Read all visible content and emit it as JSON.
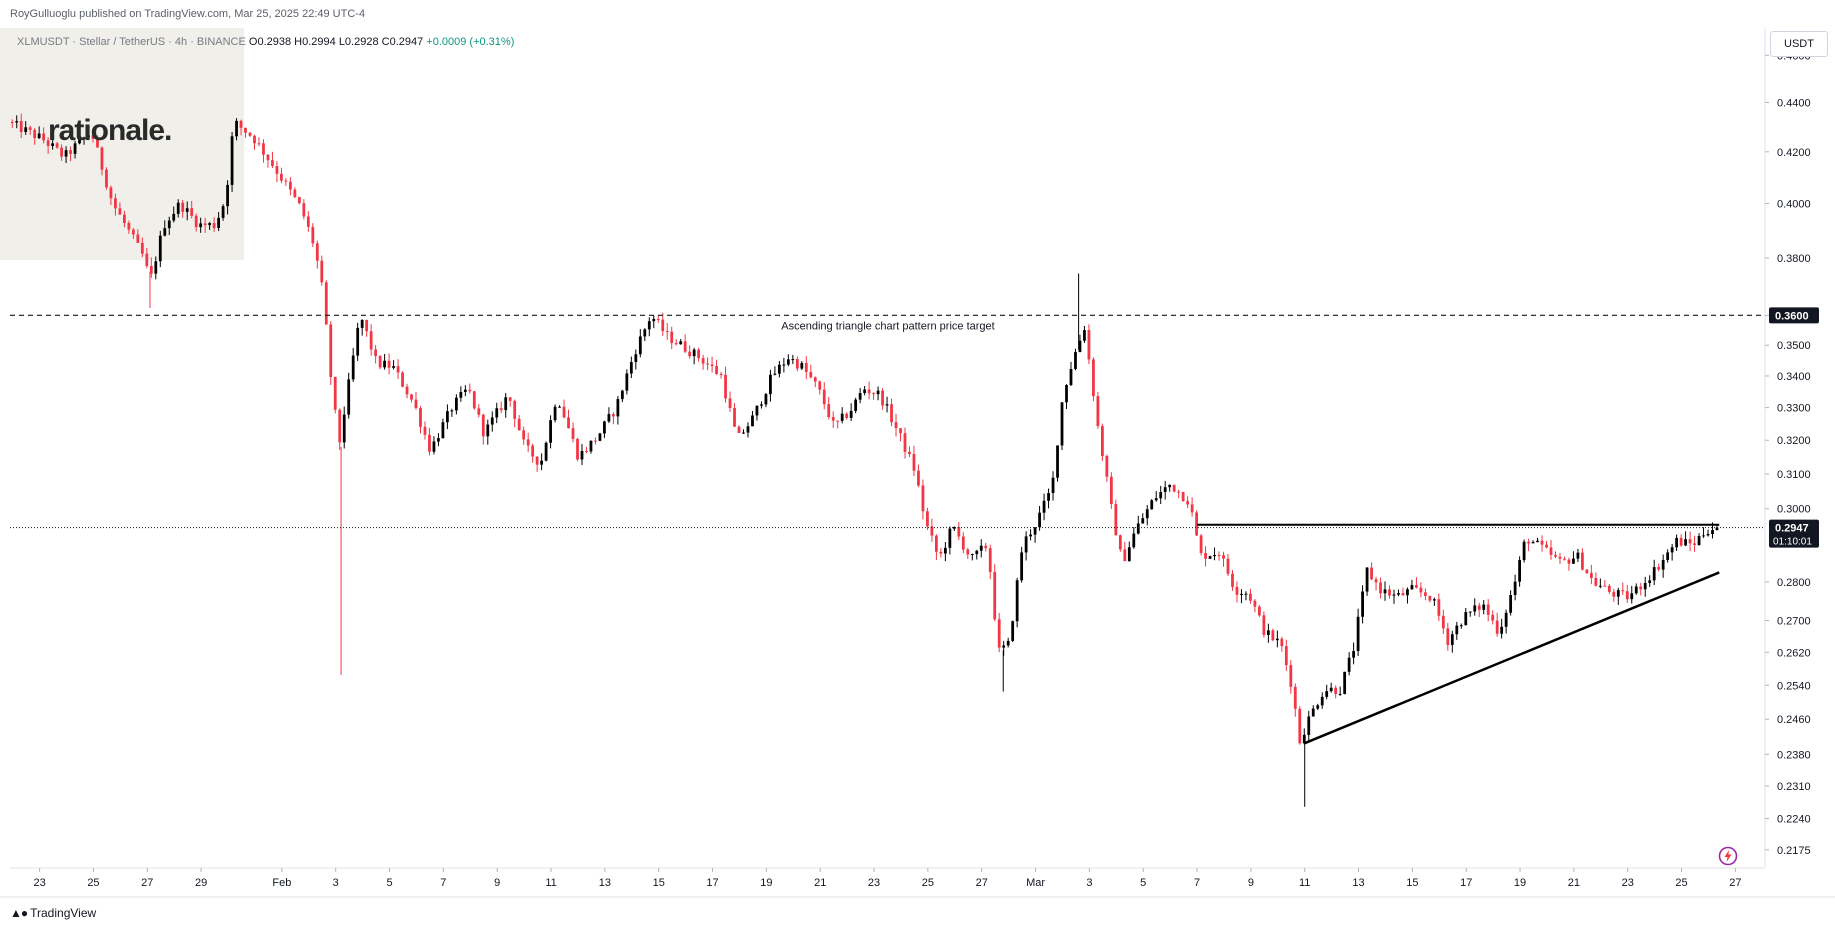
{
  "header": {
    "publisher": "RoyGulluoglu published on TradingView.com, Mar 25, 2025 22:49 UTC-4"
  },
  "legend": {
    "symbol": "XLMUSDT · Stellar / TetherUS · 4h · BINANCE",
    "open": "O0.2938",
    "high": "H0.2994",
    "low": "L0.2928",
    "close": "C0.2947",
    "change": "+0.0009 (+0.31%)"
  },
  "watermark": {
    "logo_text": "rationale."
  },
  "price_scale": {
    "currency_button": "USDT"
  },
  "footer": {
    "brand": "TradingView",
    "brand_icon": "tradingview-logo-icon"
  },
  "icons": {
    "flash": "lightning-icon"
  },
  "colors": {
    "up": "#000000",
    "down": "#f23645",
    "grid": "#f0f3fa",
    "last_price_tag": "#131722",
    "target_tag": "#131722"
  },
  "chart_data": {
    "type": "candlestick",
    "symbol": "XLMUSDT",
    "timeframe": "4h",
    "ylim": [
      0.2138,
      0.472
    ],
    "y_scale": "log",
    "y_ticks": [
      "0.4600",
      "0.4400",
      "0.4200",
      "0.4000",
      "0.3800",
      "0.3600",
      "0.3500",
      "0.3400",
      "0.3300",
      "0.3200",
      "0.3100",
      "0.3000",
      "0.2947",
      "0.2800",
      "0.2700",
      "0.2620",
      "0.2540",
      "0.2460",
      "0.2380",
      "0.2310",
      "0.2240",
      "0.2175"
    ],
    "x_ticks": [
      {
        "label": "23",
        "day": 0
      },
      {
        "label": "25",
        "day": 2
      },
      {
        "label": "27",
        "day": 4
      },
      {
        "label": "29",
        "day": 6
      },
      {
        "label": "Feb",
        "day": 9
      },
      {
        "label": "3",
        "day": 11
      },
      {
        "label": "5",
        "day": 13
      },
      {
        "label": "7",
        "day": 15
      },
      {
        "label": "9",
        "day": 17
      },
      {
        "label": "11",
        "day": 19
      },
      {
        "label": "13",
        "day": 21
      },
      {
        "label": "15",
        "day": 23
      },
      {
        "label": "17",
        "day": 25
      },
      {
        "label": "19",
        "day": 27
      },
      {
        "label": "21",
        "day": 29
      },
      {
        "label": "23",
        "day": 31
      },
      {
        "label": "25",
        "day": 33
      },
      {
        "label": "27",
        "day": 35
      },
      {
        "label": "Mar",
        "day": 37
      },
      {
        "label": "3",
        "day": 39
      },
      {
        "label": "5",
        "day": 41
      },
      {
        "label": "7",
        "day": 43
      },
      {
        "label": "9",
        "day": 45
      },
      {
        "label": "11",
        "day": 47
      },
      {
        "label": "13",
        "day": 49
      },
      {
        "label": "15",
        "day": 51
      },
      {
        "label": "17",
        "day": 53
      },
      {
        "label": "19",
        "day": 55
      },
      {
        "label": "21",
        "day": 57
      },
      {
        "label": "23",
        "day": 59
      },
      {
        "label": "25",
        "day": 61
      },
      {
        "label": "27",
        "day": 63
      }
    ],
    "x_range_days": [
      -1.1,
      64.1
    ],
    "price_anchors": [
      {
        "day": -1.1,
        "price": 0.432
      },
      {
        "day": 0.2,
        "price": 0.425
      },
      {
        "day": 1.0,
        "price": 0.418
      },
      {
        "day": 2.0,
        "price": 0.428
      },
      {
        "day": 2.8,
        "price": 0.4
      },
      {
        "day": 3.9,
        "price": 0.381
      },
      {
        "day": 4.2,
        "price": 0.372
      },
      {
        "day": 4.7,
        "price": 0.392
      },
      {
        "day": 5.3,
        "price": 0.4
      },
      {
        "day": 6.0,
        "price": 0.392
      },
      {
        "day": 6.6,
        "price": 0.392
      },
      {
        "day": 7.0,
        "price": 0.402
      },
      {
        "day": 7.3,
        "price": 0.432
      },
      {
        "day": 8.0,
        "price": 0.426
      },
      {
        "day": 8.8,
        "price": 0.414
      },
      {
        "day": 9.8,
        "price": 0.398
      },
      {
        "day": 10.3,
        "price": 0.384
      },
      {
        "day": 10.6,
        "price": 0.368
      },
      {
        "day": 10.9,
        "price": 0.34
      },
      {
        "day": 11.2,
        "price": 0.318
      },
      {
        "day": 11.6,
        "price": 0.339
      },
      {
        "day": 12.0,
        "price": 0.36
      },
      {
        "day": 12.6,
        "price": 0.344
      },
      {
        "day": 13.2,
        "price": 0.343
      },
      {
        "day": 14.0,
        "price": 0.331
      },
      {
        "day": 14.6,
        "price": 0.317
      },
      {
        "day": 15.4,
        "price": 0.33
      },
      {
        "day": 16.0,
        "price": 0.336
      },
      {
        "day": 16.6,
        "price": 0.322
      },
      {
        "day": 17.5,
        "price": 0.334
      },
      {
        "day": 18.1,
        "price": 0.318
      },
      {
        "day": 18.7,
        "price": 0.313
      },
      {
        "day": 19.3,
        "price": 0.334
      },
      {
        "day": 20.1,
        "price": 0.315
      },
      {
        "day": 20.8,
        "price": 0.321
      },
      {
        "day": 21.5,
        "price": 0.33
      },
      {
        "day": 22.2,
        "price": 0.348
      },
      {
        "day": 22.8,
        "price": 0.36
      },
      {
        "day": 23.4,
        "price": 0.353
      },
      {
        "day": 24.6,
        "price": 0.346
      },
      {
        "day": 25.4,
        "price": 0.34
      },
      {
        "day": 26.0,
        "price": 0.32
      },
      {
        "day": 26.6,
        "price": 0.327
      },
      {
        "day": 27.3,
        "price": 0.34
      },
      {
        "day": 27.9,
        "price": 0.346
      },
      {
        "day": 28.4,
        "price": 0.343
      },
      {
        "day": 29.0,
        "price": 0.336
      },
      {
        "day": 29.6,
        "price": 0.324
      },
      {
        "day": 30.2,
        "price": 0.329
      },
      {
        "day": 30.7,
        "price": 0.336
      },
      {
        "day": 31.3,
        "price": 0.334
      },
      {
        "day": 32.0,
        "price": 0.322
      },
      {
        "day": 32.6,
        "price": 0.311
      },
      {
        "day": 33.0,
        "price": 0.296
      },
      {
        "day": 33.5,
        "price": 0.286
      },
      {
        "day": 34.0,
        "price": 0.295
      },
      {
        "day": 34.7,
        "price": 0.286
      },
      {
        "day": 35.3,
        "price": 0.29
      },
      {
        "day": 35.7,
        "price": 0.262
      },
      {
        "day": 36.1,
        "price": 0.264
      },
      {
        "day": 36.6,
        "price": 0.29
      },
      {
        "day": 37.1,
        "price": 0.296
      },
      {
        "day": 37.7,
        "price": 0.306
      },
      {
        "day": 38.1,
        "price": 0.334
      },
      {
        "day": 38.5,
        "price": 0.346
      },
      {
        "day": 38.9,
        "price": 0.356
      },
      {
        "day": 39.4,
        "price": 0.324
      },
      {
        "day": 39.9,
        "price": 0.3
      },
      {
        "day": 40.3,
        "price": 0.285
      },
      {
        "day": 40.8,
        "price": 0.294
      },
      {
        "day": 41.5,
        "price": 0.303
      },
      {
        "day": 42.1,
        "price": 0.307
      },
      {
        "day": 42.8,
        "price": 0.302
      },
      {
        "day": 43.2,
        "price": 0.287
      },
      {
        "day": 43.9,
        "price": 0.288
      },
      {
        "day": 44.5,
        "price": 0.278
      },
      {
        "day": 45.0,
        "price": 0.277
      },
      {
        "day": 45.6,
        "price": 0.267
      },
      {
        "day": 46.2,
        "price": 0.264
      },
      {
        "day": 46.6,
        "price": 0.254
      },
      {
        "day": 46.9,
        "price": 0.241
      },
      {
        "day": 47.3,
        "price": 0.247
      },
      {
        "day": 47.8,
        "price": 0.253
      },
      {
        "day": 48.4,
        "price": 0.253
      },
      {
        "day": 48.9,
        "price": 0.263
      },
      {
        "day": 49.4,
        "price": 0.283
      },
      {
        "day": 49.9,
        "price": 0.278
      },
      {
        "day": 50.5,
        "price": 0.276
      },
      {
        "day": 51.1,
        "price": 0.278
      },
      {
        "day": 51.8,
        "price": 0.276
      },
      {
        "day": 52.4,
        "price": 0.265
      },
      {
        "day": 53.0,
        "price": 0.271
      },
      {
        "day": 53.7,
        "price": 0.274
      },
      {
        "day": 54.3,
        "price": 0.267
      },
      {
        "day": 54.9,
        "price": 0.28
      },
      {
        "day": 55.3,
        "price": 0.292
      },
      {
        "day": 55.9,
        "price": 0.289
      },
      {
        "day": 56.6,
        "price": 0.285
      },
      {
        "day": 57.2,
        "price": 0.287
      },
      {
        "day": 57.8,
        "price": 0.28
      },
      {
        "day": 58.5,
        "price": 0.277
      },
      {
        "day": 59.1,
        "price": 0.276
      },
      {
        "day": 59.7,
        "price": 0.28
      },
      {
        "day": 60.3,
        "price": 0.285
      },
      {
        "day": 60.9,
        "price": 0.291
      },
      {
        "day": 61.5,
        "price": 0.29
      },
      {
        "day": 62.0,
        "price": 0.294
      },
      {
        "day": 62.3,
        "price": 0.2947
      }
    ],
    "wicks": [
      {
        "day": 11.2,
        "low": 0.2565
      },
      {
        "day": 38.6,
        "high": 0.3745
      },
      {
        "day": 47.0,
        "low": 0.2265
      },
      {
        "day": 35.8,
        "low": 0.2525
      },
      {
        "day": 4.1,
        "low": 0.3625
      }
    ],
    "target_line": {
      "price": 0.36,
      "label": "Ascending triangle chart pattern price target"
    },
    "resistance_line": {
      "price": 0.2955,
      "from_day": 43.0,
      "to_day": 62.4
    },
    "support_line": {
      "from": {
        "day": 47.0,
        "price": 0.2405
      },
      "to": {
        "day": 62.4,
        "price": 0.2825
      }
    },
    "last_price": {
      "price": 0.2947,
      "label": "0.2947",
      "countdown": "01:10:01"
    }
  }
}
